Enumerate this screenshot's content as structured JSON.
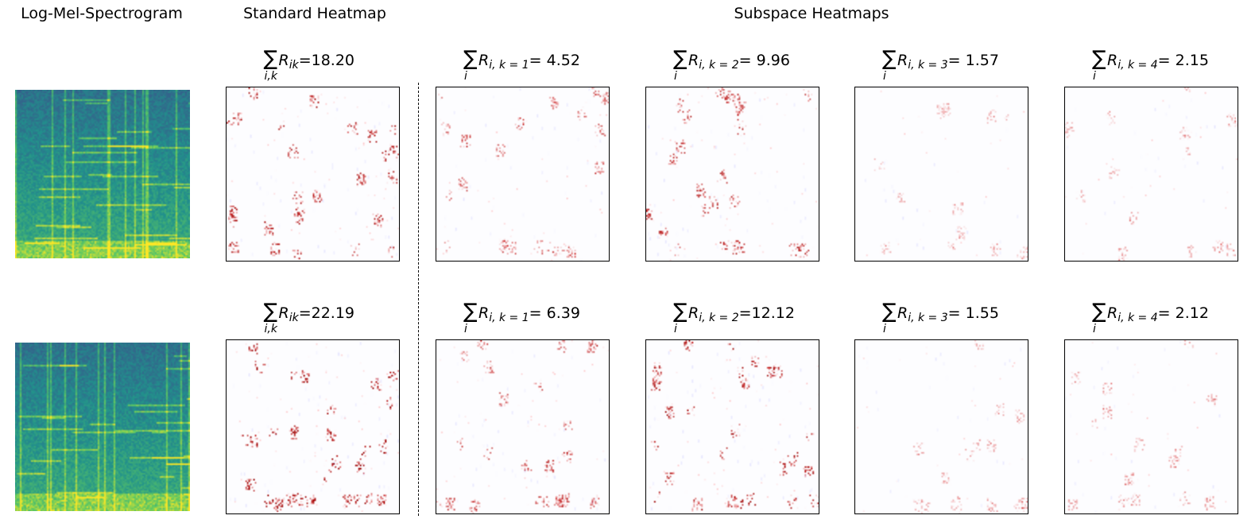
{
  "column_headers": {
    "spectrogram": "Log-Mel-Spectrogram",
    "standard": "Standard Heatmap",
    "subspace": "Subspace Heatmaps"
  },
  "colors": {
    "positive": "#ff0000",
    "negative": "#0000ff",
    "neutral": "#ffffff",
    "spectrogram_colormap": "viridis"
  },
  "chart_data": {
    "type": "heatmap",
    "colormap": "bwr",
    "rows": [
      {
        "standard": {
          "sum_sub": "i,k",
          "R_sub": "ik",
          "value": "=18.20"
        },
        "subspaces": [
          {
            "sum_sub": "i",
            "R_sub": "i, k = 1",
            "value": "= 4.52"
          },
          {
            "sum_sub": "i",
            "R_sub": "i, k = 2",
            "value": "= 9.96"
          },
          {
            "sum_sub": "i",
            "R_sub": "i, k = 3",
            "value": "= 1.57"
          },
          {
            "sum_sub": "i",
            "R_sub": "i, k = 4",
            "value": "= 2.15"
          }
        ]
      },
      {
        "standard": {
          "sum_sub": "i,k",
          "R_sub": "ik",
          "value": "=22.19"
        },
        "subspaces": [
          {
            "sum_sub": "i",
            "R_sub": "i, k = 1",
            "value": "= 6.39"
          },
          {
            "sum_sub": "i",
            "R_sub": "i, k = 2",
            "value": "=12.12"
          },
          {
            "sum_sub": "i",
            "R_sub": "i, k = 3",
            "value": "= 1.55"
          },
          {
            "sum_sub": "i",
            "R_sub": "i, k = 4",
            "value": "= 2.12"
          }
        ]
      }
    ]
  }
}
